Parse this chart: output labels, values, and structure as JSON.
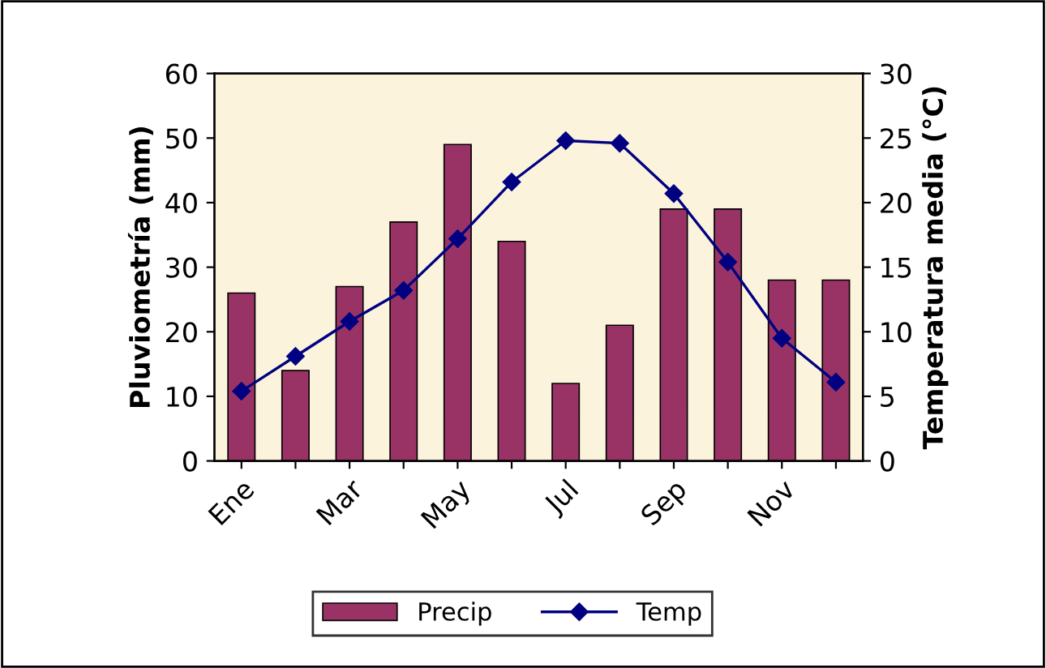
{
  "chart_data": {
    "type": "bar",
    "ylabel": "Pluviometría (mm)",
    "y2label": "Temperatura media (°C)",
    "categories": [
      "Ene",
      null,
      "Mar",
      null,
      "May",
      null,
      "Jul",
      null,
      "Sep",
      null,
      "Nov",
      null
    ],
    "series": [
      {
        "name": "Precip",
        "color": "#993366",
        "values": [
          26,
          14,
          27,
          37,
          49,
          34,
          12,
          21,
          39,
          39,
          28,
          28
        ]
      },
      {
        "name": "Temp",
        "type": "line",
        "axis": "y2",
        "color": "#000080",
        "values": [
          5.4,
          8.1,
          10.8,
          13.2,
          17.2,
          21.6,
          24.8,
          24.6,
          20.7,
          15.4,
          9.5,
          6.1
        ]
      }
    ],
    "ylim": [
      0,
      60
    ],
    "yticks": [
      0,
      10,
      20,
      30,
      40,
      50,
      60
    ],
    "y2lim": [
      0,
      30
    ],
    "y2ticks": [
      0,
      5,
      10,
      15,
      20,
      25,
      30
    ],
    "grid": false,
    "legend": "bottom",
    "marker": "diamond",
    "line_style": "solid"
  }
}
